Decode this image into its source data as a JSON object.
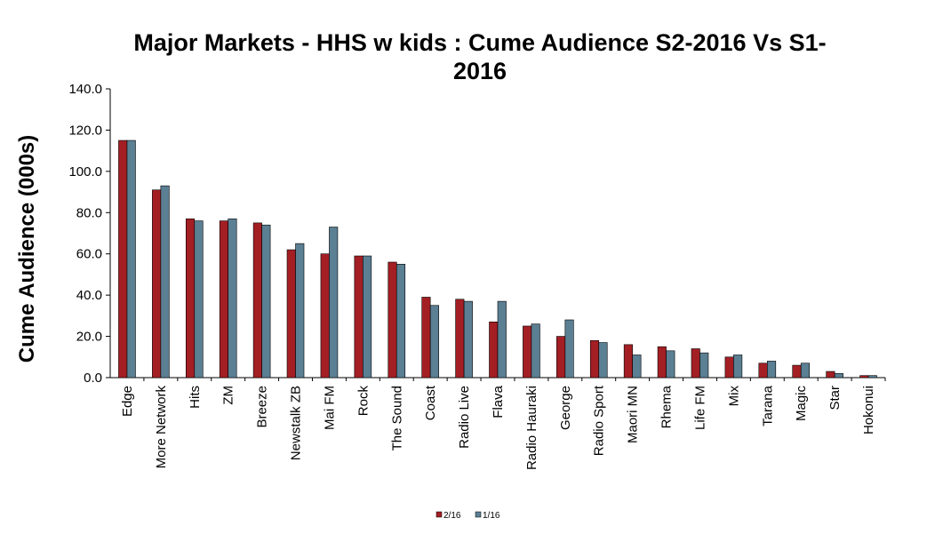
{
  "chart_data": {
    "type": "bar",
    "title_line1": "Major Markets - HHS w kids : Cume Audience S2-2016 Vs S1-",
    "title_line2": "2016",
    "ylabel": "Cume Audience (000s)",
    "xlabel": "",
    "ylim": [
      0,
      140
    ],
    "yticks": [
      "0.0",
      "20.0",
      "40.0",
      "60.0",
      "80.0",
      "100.0",
      "120.0",
      "140.0"
    ],
    "grid": false,
    "legend_position": "bottom-center",
    "categories": [
      "Edge",
      "More Network",
      "Hits",
      "ZM",
      "Breeze",
      "Newstalk ZB",
      "Mai FM",
      "Rock",
      "The Sound",
      "Coast",
      "Radio Live",
      "Flava",
      "Radio Hauraki",
      "George",
      "Radio Sport",
      "Maori MN",
      "Rhema",
      "Life FM",
      "Mix",
      "Tarana",
      "Magic",
      "Star",
      "Hokonui"
    ],
    "series": [
      {
        "name": "2/16",
        "color": "#a31f24",
        "values": [
          115,
          91,
          77,
          76,
          75,
          62,
          60,
          59,
          56,
          39,
          38,
          27,
          25,
          20,
          18,
          16,
          15,
          14,
          10,
          7,
          6,
          3,
          1
        ]
      },
      {
        "name": "1/16",
        "color": "#5b7f93",
        "values": [
          115,
          93,
          76,
          77,
          74,
          65,
          73,
          59,
          55,
          35,
          37,
          37,
          26,
          28,
          17,
          11,
          13,
          12,
          11,
          8,
          7,
          2,
          1
        ]
      }
    ]
  }
}
